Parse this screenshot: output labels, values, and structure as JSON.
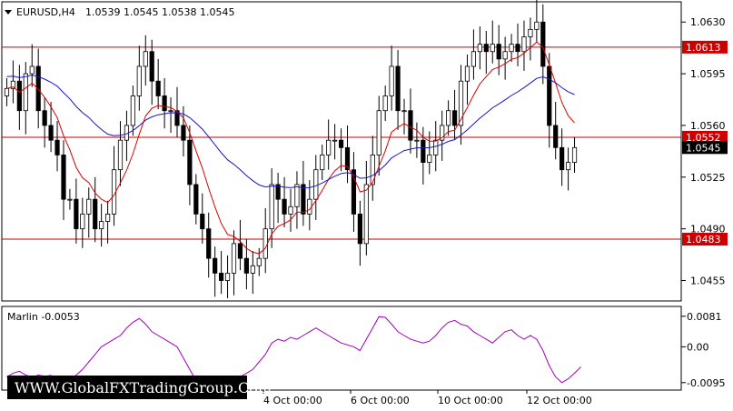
{
  "header": {
    "symbol": "EURUSD,H4",
    "ohlc": "1.0539 1.0545 1.0538 1.0545"
  },
  "watermark": "WWW.GlobalFXTradingGroup.Com",
  "colors": {
    "candle_outline": "#000000",
    "fast_ma": "#dd0000",
    "slow_ma": "#1515cc",
    "hline": "#cc0000",
    "indicator": "#a000c0",
    "price_box": "#cc0000",
    "current_price_box": "#000000"
  },
  "chart_data": [
    {
      "type": "candlestick",
      "title": "EURUSD,H4",
      "y_ticks": [
        "1.0630",
        "1.0595",
        "1.0560",
        "1.0525",
        "1.0490",
        "1.0455"
      ],
      "ylim": [
        1.0443,
        1.064
      ],
      "x_ticks": [
        "4 Oct 00:00",
        "6 Oct 00:00",
        "10 Oct 00:00",
        "12 Oct 00:00"
      ],
      "horizontal_levels": [
        {
          "label": "1.0613",
          "value": 1.0613
        },
        {
          "label": "1.0552",
          "value": 1.0552
        },
        {
          "label": "1.0483",
          "value": 1.0483
        }
      ],
      "current_price": "1.0545",
      "candles_close": [
        1.0585,
        1.059,
        1.057,
        1.0595,
        1.06,
        1.057,
        1.056,
        1.055,
        1.054,
        1.051,
        1.051,
        1.049,
        1.05,
        1.051,
        1.049,
        1.0495,
        1.05,
        1.053,
        1.055,
        1.056,
        1.058,
        1.06,
        1.061,
        1.059,
        1.058,
        1.057,
        1.057,
        1.056,
        1.055,
        1.052,
        1.05,
        1.049,
        1.047,
        1.046,
        1.0455,
        1.046,
        1.048,
        1.047,
        1.046,
        1.0465,
        1.047,
        1.049,
        1.052,
        1.051,
        1.05,
        1.0505,
        1.052,
        1.05,
        1.051,
        1.053,
        1.054,
        1.055,
        1.055,
        1.0545,
        1.053,
        1.05,
        1.048,
        1.052,
        1.054,
        1.057,
        1.058,
        1.06,
        1.057,
        1.057,
        1.055,
        1.055,
        1.0535,
        1.054,
        1.055,
        1.056,
        1.057,
        1.056,
        1.059,
        1.06,
        1.061,
        1.0615,
        1.061,
        1.0615,
        1.0605,
        1.061,
        1.0615,
        1.061,
        1.062,
        1.0625,
        1.063,
        1.06,
        1.056,
        1.0545,
        1.053,
        1.0535,
        1.0545
      ],
      "series": [
        {
          "name": "fast_ma_approx",
          "color": "#dd0000"
        },
        {
          "name": "slow_ma_approx",
          "color": "#1515cc"
        }
      ]
    },
    {
      "type": "line",
      "title": "Marlin -0.0053",
      "y_ticks": [
        "0.0081",
        "0.00",
        "-0.0095"
      ],
      "ylim": [
        -0.011,
        0.0095
      ],
      "values": [
        -0.008,
        -0.007,
        -0.0065,
        -0.0075,
        -0.008,
        -0.0075,
        -0.0078,
        -0.0076,
        -0.0085,
        -0.009,
        -0.0085,
        -0.0075,
        -0.006,
        -0.004,
        -0.002,
        0.0,
        0.001,
        0.002,
        0.003,
        0.005,
        0.0065,
        0.0075,
        0.006,
        0.004,
        0.003,
        0.002,
        0.001,
        0.0,
        -0.003,
        -0.006,
        -0.009,
        -0.0105,
        -0.01,
        -0.0095,
        -0.0105,
        -0.0095,
        -0.009,
        -0.008,
        -0.007,
        -0.006,
        -0.004,
        -0.002,
        0.001,
        0.002,
        0.0015,
        0.0025,
        0.002,
        0.003,
        0.004,
        0.005,
        0.004,
        0.003,
        0.002,
        0.001,
        0.0005,
        0.0,
        -0.001,
        0.002,
        0.005,
        0.008,
        0.0078,
        0.006,
        0.004,
        0.003,
        0.002,
        0.0015,
        0.001,
        0.0015,
        0.003,
        0.005,
        0.0065,
        0.007,
        0.006,
        0.0055,
        0.004,
        0.003,
        0.002,
        0.001,
        0.0025,
        0.004,
        0.0045,
        0.003,
        0.002,
        0.003,
        0.002,
        -0.001,
        -0.005,
        -0.008,
        -0.0095,
        -0.0085,
        -0.007,
        -0.0053
      ]
    }
  ]
}
